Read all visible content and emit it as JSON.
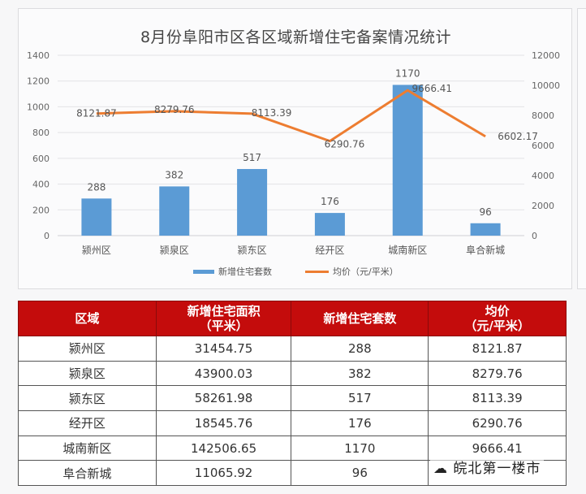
{
  "chart_data": {
    "type": "bar+line",
    "title": "8月份阜阳市区各区域新增住宅备案情况统计",
    "categories": [
      "颍州区",
      "颍泉区",
      "颍东区",
      "经开区",
      "城南新区",
      "阜合新城"
    ],
    "series": [
      {
        "name": "新增住宅套数",
        "type": "bar",
        "axis": "left",
        "color": "#5b9bd5",
        "values": [
          288,
          382,
          517,
          176,
          1170,
          96
        ]
      },
      {
        "name": "均价（元/平米）",
        "type": "line",
        "axis": "right",
        "color": "#ed7d31",
        "values": [
          8121.87,
          8279.76,
          8113.39,
          6290.76,
          9666.41,
          6602.17
        ]
      }
    ],
    "left_axis": {
      "ticks": [
        0,
        200,
        400,
        600,
        800,
        1000,
        1200,
        1400
      ],
      "ylim": [
        0,
        1400
      ]
    },
    "right_axis": {
      "ticks": [
        0,
        2000,
        4000,
        6000,
        8000,
        10000,
        12000
      ],
      "ylim": [
        0,
        12000
      ]
    },
    "grid": true,
    "legend_position": "bottom"
  },
  "table": {
    "headers": [
      {
        "line1": "区域",
        "line2": ""
      },
      {
        "line1": "新增住宅面积",
        "line2": "（平米）"
      },
      {
        "line1": "新增住宅套数",
        "line2": ""
      },
      {
        "line1": "均价",
        "line2": "（元/平米）"
      }
    ],
    "rows": [
      [
        "颍州区",
        "31454.75",
        "288",
        "8121.87"
      ],
      [
        "颍泉区",
        "43900.03",
        "382",
        "8279.76"
      ],
      [
        "颍东区",
        "58261.98",
        "517",
        "8113.39"
      ],
      [
        "经开区",
        "18545.76",
        "176",
        "6290.76"
      ],
      [
        "城南新区",
        "142506.65",
        "1170",
        "9666.41"
      ],
      [
        "阜合新城",
        "11065.92",
        "96",
        ""
      ]
    ],
    "header_color": "#c40c0c"
  },
  "watermark": "☁ 皖北第一楼市"
}
